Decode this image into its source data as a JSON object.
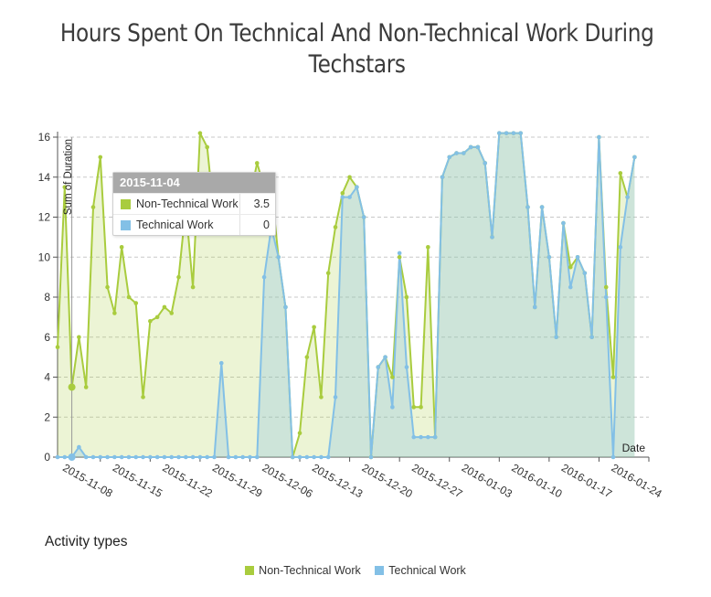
{
  "title_line1": "Hours Spent On Technical And Non-Technical Work During",
  "title_line2": "Techstars",
  "tooltip": {
    "date": "2015-11-04",
    "rows": [
      {
        "name": "Non-Technical Work",
        "value": "3.5",
        "color": "#a9cc3e"
      },
      {
        "name": "Technical Work",
        "value": "0",
        "color": "#83c0e6"
      }
    ]
  },
  "legend_title": "Activity types",
  "legend": [
    {
      "name": "Non-Technical Work",
      "color": "#a9cc3e"
    },
    {
      "name": "Technical Work",
      "color": "#83c0e6"
    }
  ],
  "chart_data": {
    "type": "area",
    "title": "Hours Spent On Technical And Non-Technical Work During Techstars",
    "xlabel": "Date",
    "ylabel": "Sum of Duration",
    "ylim": [
      0,
      16.5
    ],
    "yticks": [
      0,
      2,
      4,
      6,
      8,
      10,
      12,
      14,
      16
    ],
    "xlim": [
      "2015-11-02",
      "2016-01-24"
    ],
    "xticks": [
      "2015-11-08",
      "2015-11-15",
      "2015-11-22",
      "2015-11-29",
      "2015-12-06",
      "2015-12-13",
      "2015-12-20",
      "2015-12-27",
      "2016-01-03",
      "2016-01-10",
      "2016-01-17",
      "2016-01-24"
    ],
    "grid": "horizontal dashed",
    "series": [
      {
        "name": "Non-Technical Work",
        "color": "#a9cc3e",
        "points": [
          [
            "2015-11-02",
            5.5
          ],
          [
            "2015-11-03",
            13.5
          ],
          [
            "2015-11-04",
            3.5
          ],
          [
            "2015-11-05",
            6.0
          ],
          [
            "2015-11-06",
            3.5
          ],
          [
            "2015-11-07",
            12.5
          ],
          [
            "2015-11-08",
            15.0
          ],
          [
            "2015-11-09",
            8.5
          ],
          [
            "2015-11-10",
            7.2
          ],
          [
            "2015-11-11",
            10.5
          ],
          [
            "2015-11-12",
            8.0
          ],
          [
            "2015-11-13",
            7.7
          ],
          [
            "2015-11-14",
            3.0
          ],
          [
            "2015-11-15",
            6.8
          ],
          [
            "2015-11-16",
            7.0
          ],
          [
            "2015-11-17",
            7.5
          ],
          [
            "2015-11-18",
            7.2
          ],
          [
            "2015-11-19",
            9.0
          ],
          [
            "2015-11-20",
            12.5
          ],
          [
            "2015-11-21",
            8.5
          ],
          [
            "2015-11-22",
            16.2
          ],
          [
            "2015-11-23",
            15.5
          ],
          [
            "2015-11-24",
            12.0
          ],
          [
            "2015-11-25",
            12.5
          ],
          [
            "2015-11-26",
            13.5
          ],
          [
            "2015-11-27",
            14.0
          ],
          [
            "2015-11-28",
            11.2
          ],
          [
            "2015-11-29",
            13.0
          ],
          [
            "2015-11-30",
            14.7
          ],
          [
            "2015-12-01",
            13.5
          ],
          [
            "2015-12-02",
            13.5
          ],
          [
            "2015-12-03",
            10.0
          ],
          [
            "2015-12-04",
            7.5
          ],
          [
            "2015-12-05",
            0.0
          ],
          [
            "2015-12-06",
            1.2
          ],
          [
            "2015-12-07",
            5.0
          ],
          [
            "2015-12-08",
            6.5
          ],
          [
            "2015-12-09",
            3.0
          ],
          [
            "2015-12-10",
            9.2
          ],
          [
            "2015-12-11",
            11.5
          ],
          [
            "2015-12-12",
            13.2
          ],
          [
            "2015-12-13",
            14.0
          ],
          [
            "2015-12-14",
            13.5
          ],
          [
            "2015-12-15",
            12.0
          ],
          [
            "2015-12-16",
            0.0
          ],
          [
            "2015-12-17",
            4.5
          ],
          [
            "2015-12-18",
            5.0
          ],
          [
            "2015-12-19",
            4.0
          ],
          [
            "2015-12-20",
            10.0
          ],
          [
            "2015-12-21",
            8.0
          ],
          [
            "2015-12-22",
            2.5
          ],
          [
            "2015-12-23",
            2.5
          ],
          [
            "2015-12-24",
            10.5
          ],
          [
            "2015-12-25",
            1.0
          ],
          [
            "2015-12-26",
            14.0
          ],
          [
            "2015-12-27",
            15.0
          ],
          [
            "2015-12-28",
            15.2
          ],
          [
            "2015-12-29",
            15.2
          ],
          [
            "2015-12-30",
            15.5
          ],
          [
            "2015-12-31",
            15.5
          ],
          [
            "2016-01-01",
            14.7
          ],
          [
            "2016-01-02",
            11.0
          ],
          [
            "2016-01-03",
            16.2
          ],
          [
            "2016-01-04",
            16.2
          ],
          [
            "2016-01-05",
            16.2
          ],
          [
            "2016-01-06",
            16.2
          ],
          [
            "2016-01-07",
            12.5
          ],
          [
            "2016-01-08",
            7.5
          ],
          [
            "2016-01-09",
            12.5
          ],
          [
            "2016-01-10",
            10.0
          ],
          [
            "2016-01-11",
            6.0
          ],
          [
            "2016-01-12",
            11.7
          ],
          [
            "2016-01-13",
            9.5
          ],
          [
            "2016-01-14",
            10.0
          ],
          [
            "2016-01-15",
            9.2
          ],
          [
            "2016-01-16",
            6.0
          ],
          [
            "2016-01-17",
            16.0
          ],
          [
            "2016-01-18",
            8.5
          ],
          [
            "2016-01-19",
            4.0
          ],
          [
            "2016-01-20",
            14.2
          ],
          [
            "2016-01-21",
            13.0
          ],
          [
            "2016-01-22",
            15.0
          ]
        ]
      },
      {
        "name": "Technical Work",
        "color": "#83c0e6",
        "points": [
          [
            "2015-11-02",
            0.0
          ],
          [
            "2015-11-03",
            0.0
          ],
          [
            "2015-11-04",
            0.0
          ],
          [
            "2015-11-05",
            0.5
          ],
          [
            "2015-11-06",
            0.0
          ],
          [
            "2015-11-07",
            0.0
          ],
          [
            "2015-11-08",
            0.0
          ],
          [
            "2015-11-09",
            0.0
          ],
          [
            "2015-11-10",
            0.0
          ],
          [
            "2015-11-11",
            0.0
          ],
          [
            "2015-11-12",
            0.0
          ],
          [
            "2015-11-13",
            0.0
          ],
          [
            "2015-11-14",
            0.0
          ],
          [
            "2015-11-15",
            0.0
          ],
          [
            "2015-11-16",
            0.0
          ],
          [
            "2015-11-17",
            0.0
          ],
          [
            "2015-11-18",
            0.0
          ],
          [
            "2015-11-19",
            0.0
          ],
          [
            "2015-11-20",
            0.0
          ],
          [
            "2015-11-21",
            0.0
          ],
          [
            "2015-11-22",
            0.0
          ],
          [
            "2015-11-23",
            0.0
          ],
          [
            "2015-11-24",
            0.0
          ],
          [
            "2015-11-25",
            4.7
          ],
          [
            "2015-11-26",
            0.0
          ],
          [
            "2015-11-27",
            0.0
          ],
          [
            "2015-11-28",
            0.0
          ],
          [
            "2015-11-29",
            0.0
          ],
          [
            "2015-11-30",
            0.0
          ],
          [
            "2015-12-01",
            9.0
          ],
          [
            "2015-12-02",
            11.5
          ],
          [
            "2015-12-03",
            10.0
          ],
          [
            "2015-12-04",
            7.5
          ],
          [
            "2015-12-05",
            0.0
          ],
          [
            "2015-12-06",
            0.0
          ],
          [
            "2015-12-07",
            0.0
          ],
          [
            "2015-12-08",
            0.0
          ],
          [
            "2015-12-09",
            0.0
          ],
          [
            "2015-12-10",
            0.0
          ],
          [
            "2015-12-11",
            3.0
          ],
          [
            "2015-12-12",
            13.0
          ],
          [
            "2015-12-13",
            13.0
          ],
          [
            "2015-12-14",
            13.5
          ],
          [
            "2015-12-15",
            12.0
          ],
          [
            "2015-12-16",
            0.0
          ],
          [
            "2015-12-17",
            4.5
          ],
          [
            "2015-12-18",
            5.0
          ],
          [
            "2015-12-19",
            2.5
          ],
          [
            "2015-12-20",
            10.2
          ],
          [
            "2015-12-21",
            4.5
          ],
          [
            "2015-12-22",
            1.0
          ],
          [
            "2015-12-23",
            1.0
          ],
          [
            "2015-12-24",
            1.0
          ],
          [
            "2015-12-25",
            1.0
          ],
          [
            "2015-12-26",
            14.0
          ],
          [
            "2015-12-27",
            15.0
          ],
          [
            "2015-12-28",
            15.2
          ],
          [
            "2015-12-29",
            15.2
          ],
          [
            "2015-12-30",
            15.5
          ],
          [
            "2015-12-31",
            15.5
          ],
          [
            "2016-01-01",
            14.7
          ],
          [
            "2016-01-02",
            11.0
          ],
          [
            "2016-01-03",
            16.2
          ],
          [
            "2016-01-04",
            16.2
          ],
          [
            "2016-01-05",
            16.2
          ],
          [
            "2016-01-06",
            16.2
          ],
          [
            "2016-01-07",
            12.5
          ],
          [
            "2016-01-08",
            7.5
          ],
          [
            "2016-01-09",
            12.5
          ],
          [
            "2016-01-10",
            10.0
          ],
          [
            "2016-01-11",
            6.0
          ],
          [
            "2016-01-12",
            11.7
          ],
          [
            "2016-01-13",
            8.5
          ],
          [
            "2016-01-14",
            10.0
          ],
          [
            "2016-01-15",
            9.2
          ],
          [
            "2016-01-16",
            6.0
          ],
          [
            "2016-01-17",
            16.0
          ],
          [
            "2016-01-18",
            8.0
          ],
          [
            "2016-01-19",
            0.0
          ],
          [
            "2016-01-20",
            10.5
          ],
          [
            "2016-01-21",
            13.0
          ],
          [
            "2016-01-22",
            15.0
          ]
        ]
      }
    ]
  }
}
